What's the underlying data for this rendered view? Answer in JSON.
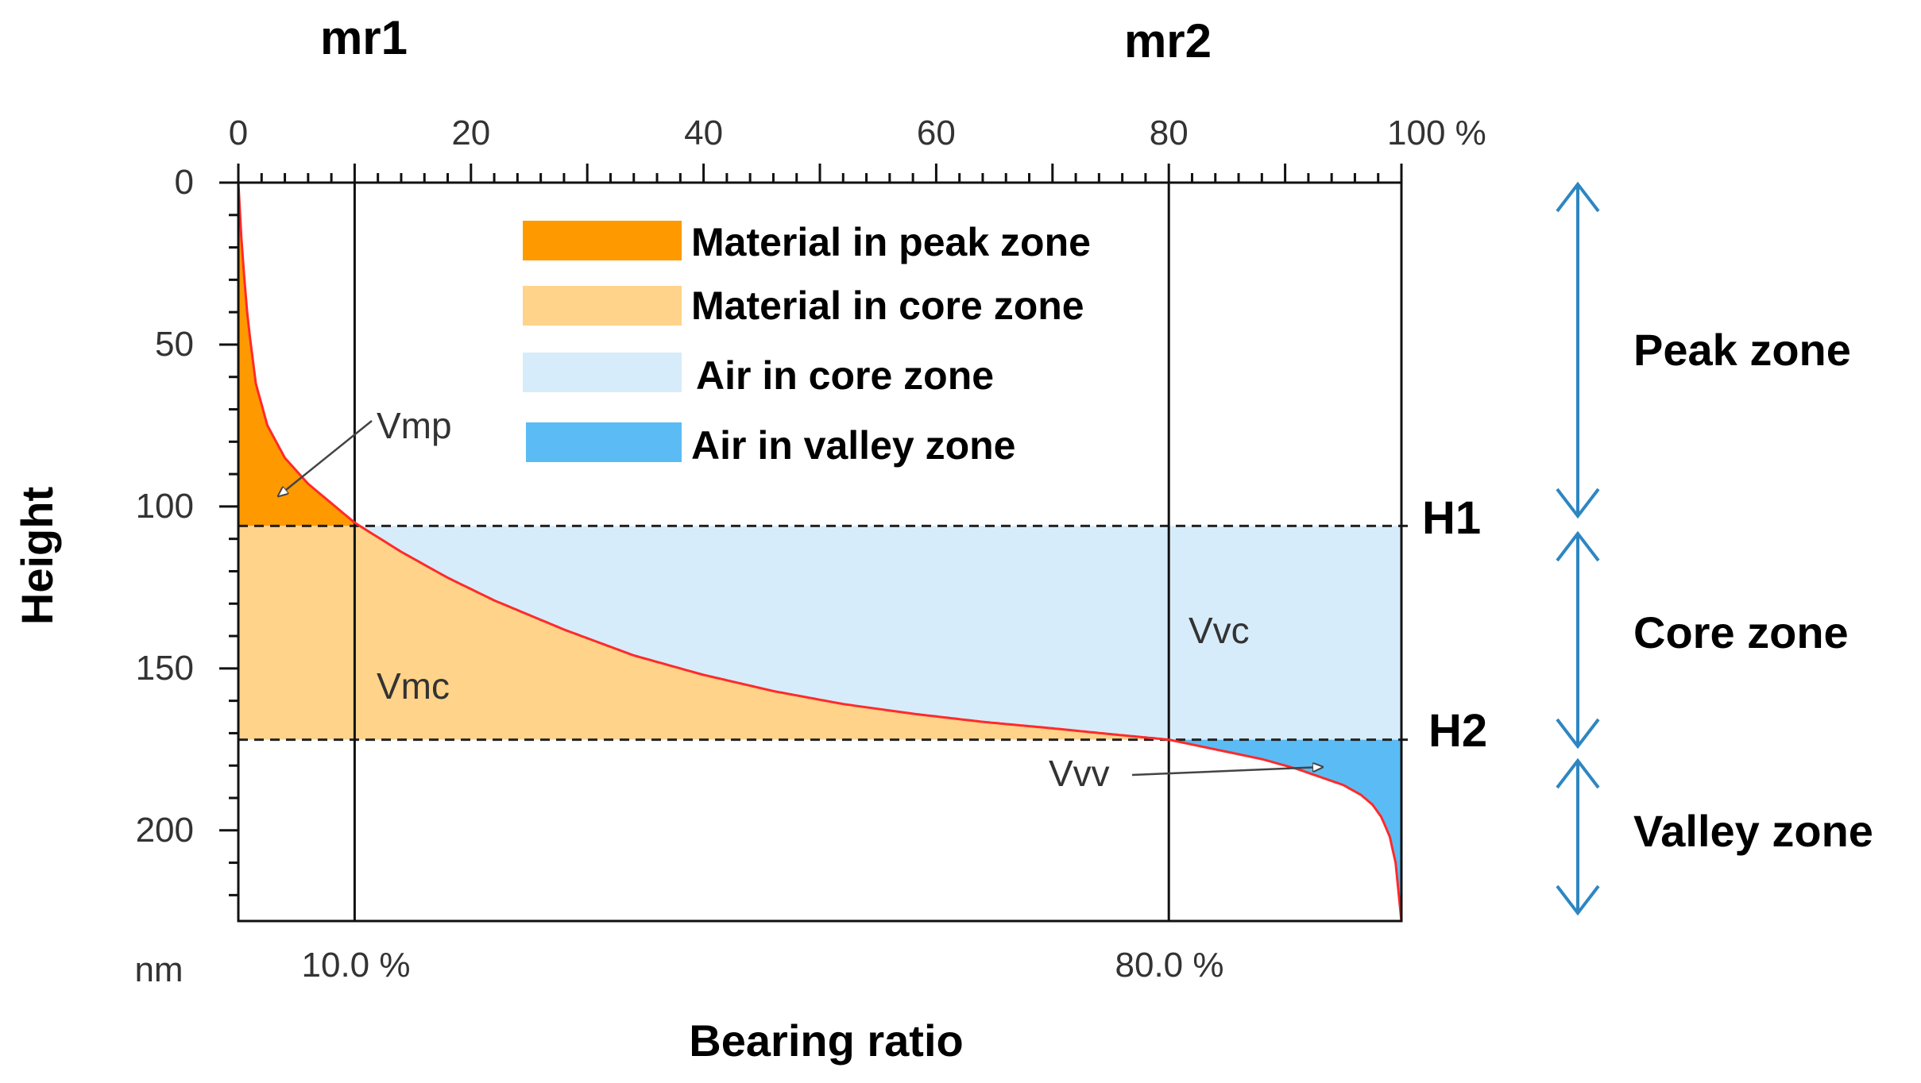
{
  "chart_data": {
    "type": "area",
    "title": "",
    "xlabel": "Bearing ratio",
    "ylabel": "Height",
    "y_unit": "nm",
    "x_unit_label": "%",
    "xlim": [
      0,
      100
    ],
    "ylim": [
      0,
      228
    ],
    "y_inverted": true,
    "x_ticks": [
      0,
      20,
      40,
      60,
      80,
      100
    ],
    "x_tick_labels": [
      "0",
      "20",
      "40",
      "60",
      "80",
      "100 %"
    ],
    "y_ticks": [
      0,
      50,
      100,
      150,
      200
    ],
    "y_tick_labels": [
      "0",
      "50",
      "100",
      "150",
      "200"
    ],
    "curve": {
      "name": "Bearing area curve",
      "color": "#ff2a2a",
      "x": [
        0,
        0.3,
        0.8,
        1.5,
        2.5,
        4,
        6,
        8,
        10,
        14,
        18,
        22,
        28,
        34,
        40,
        46,
        52,
        58,
        64,
        70,
        75,
        80,
        84,
        88,
        91,
        93,
        95,
        96.5,
        97.5,
        98.3,
        99,
        99.5,
        100
      ],
      "y": [
        0,
        20,
        42,
        62,
        75,
        85,
        93,
        99,
        105,
        114,
        122,
        129,
        138,
        146,
        152,
        157,
        161,
        164,
        166.5,
        168.5,
        170.3,
        172,
        175,
        178,
        181,
        183.5,
        186,
        189,
        192,
        196,
        202,
        210,
        228
      ]
    },
    "vertical_lines": [
      {
        "name": "mr1",
        "x": 10,
        "value_label": "10.0 %"
      },
      {
        "name": "mr2",
        "x": 80,
        "value_label": "80.0 %"
      }
    ],
    "horizontal_levels": [
      {
        "name": "H1",
        "y": 106
      },
      {
        "name": "H2",
        "y": 172
      }
    ],
    "legend": [
      {
        "label": "Material in peak zone",
        "color": "#ff9900"
      },
      {
        "label": "Material in core zone",
        "color": "#ffd38a"
      },
      {
        "label": "Air in core zone",
        "color": "#d6ecfb"
      },
      {
        "label": "Air in valley zone",
        "color": "#5bbcf5"
      }
    ],
    "annotations": {
      "vmp": "Vmp",
      "vmc": "Vmc",
      "vvc": "Vvc",
      "vvv": "Vvv"
    },
    "zones": [
      {
        "label": "Peak zone"
      },
      {
        "label": "Core zone"
      },
      {
        "label": "Valley zone"
      }
    ],
    "zone_arrow_color": "#2e86c1"
  }
}
